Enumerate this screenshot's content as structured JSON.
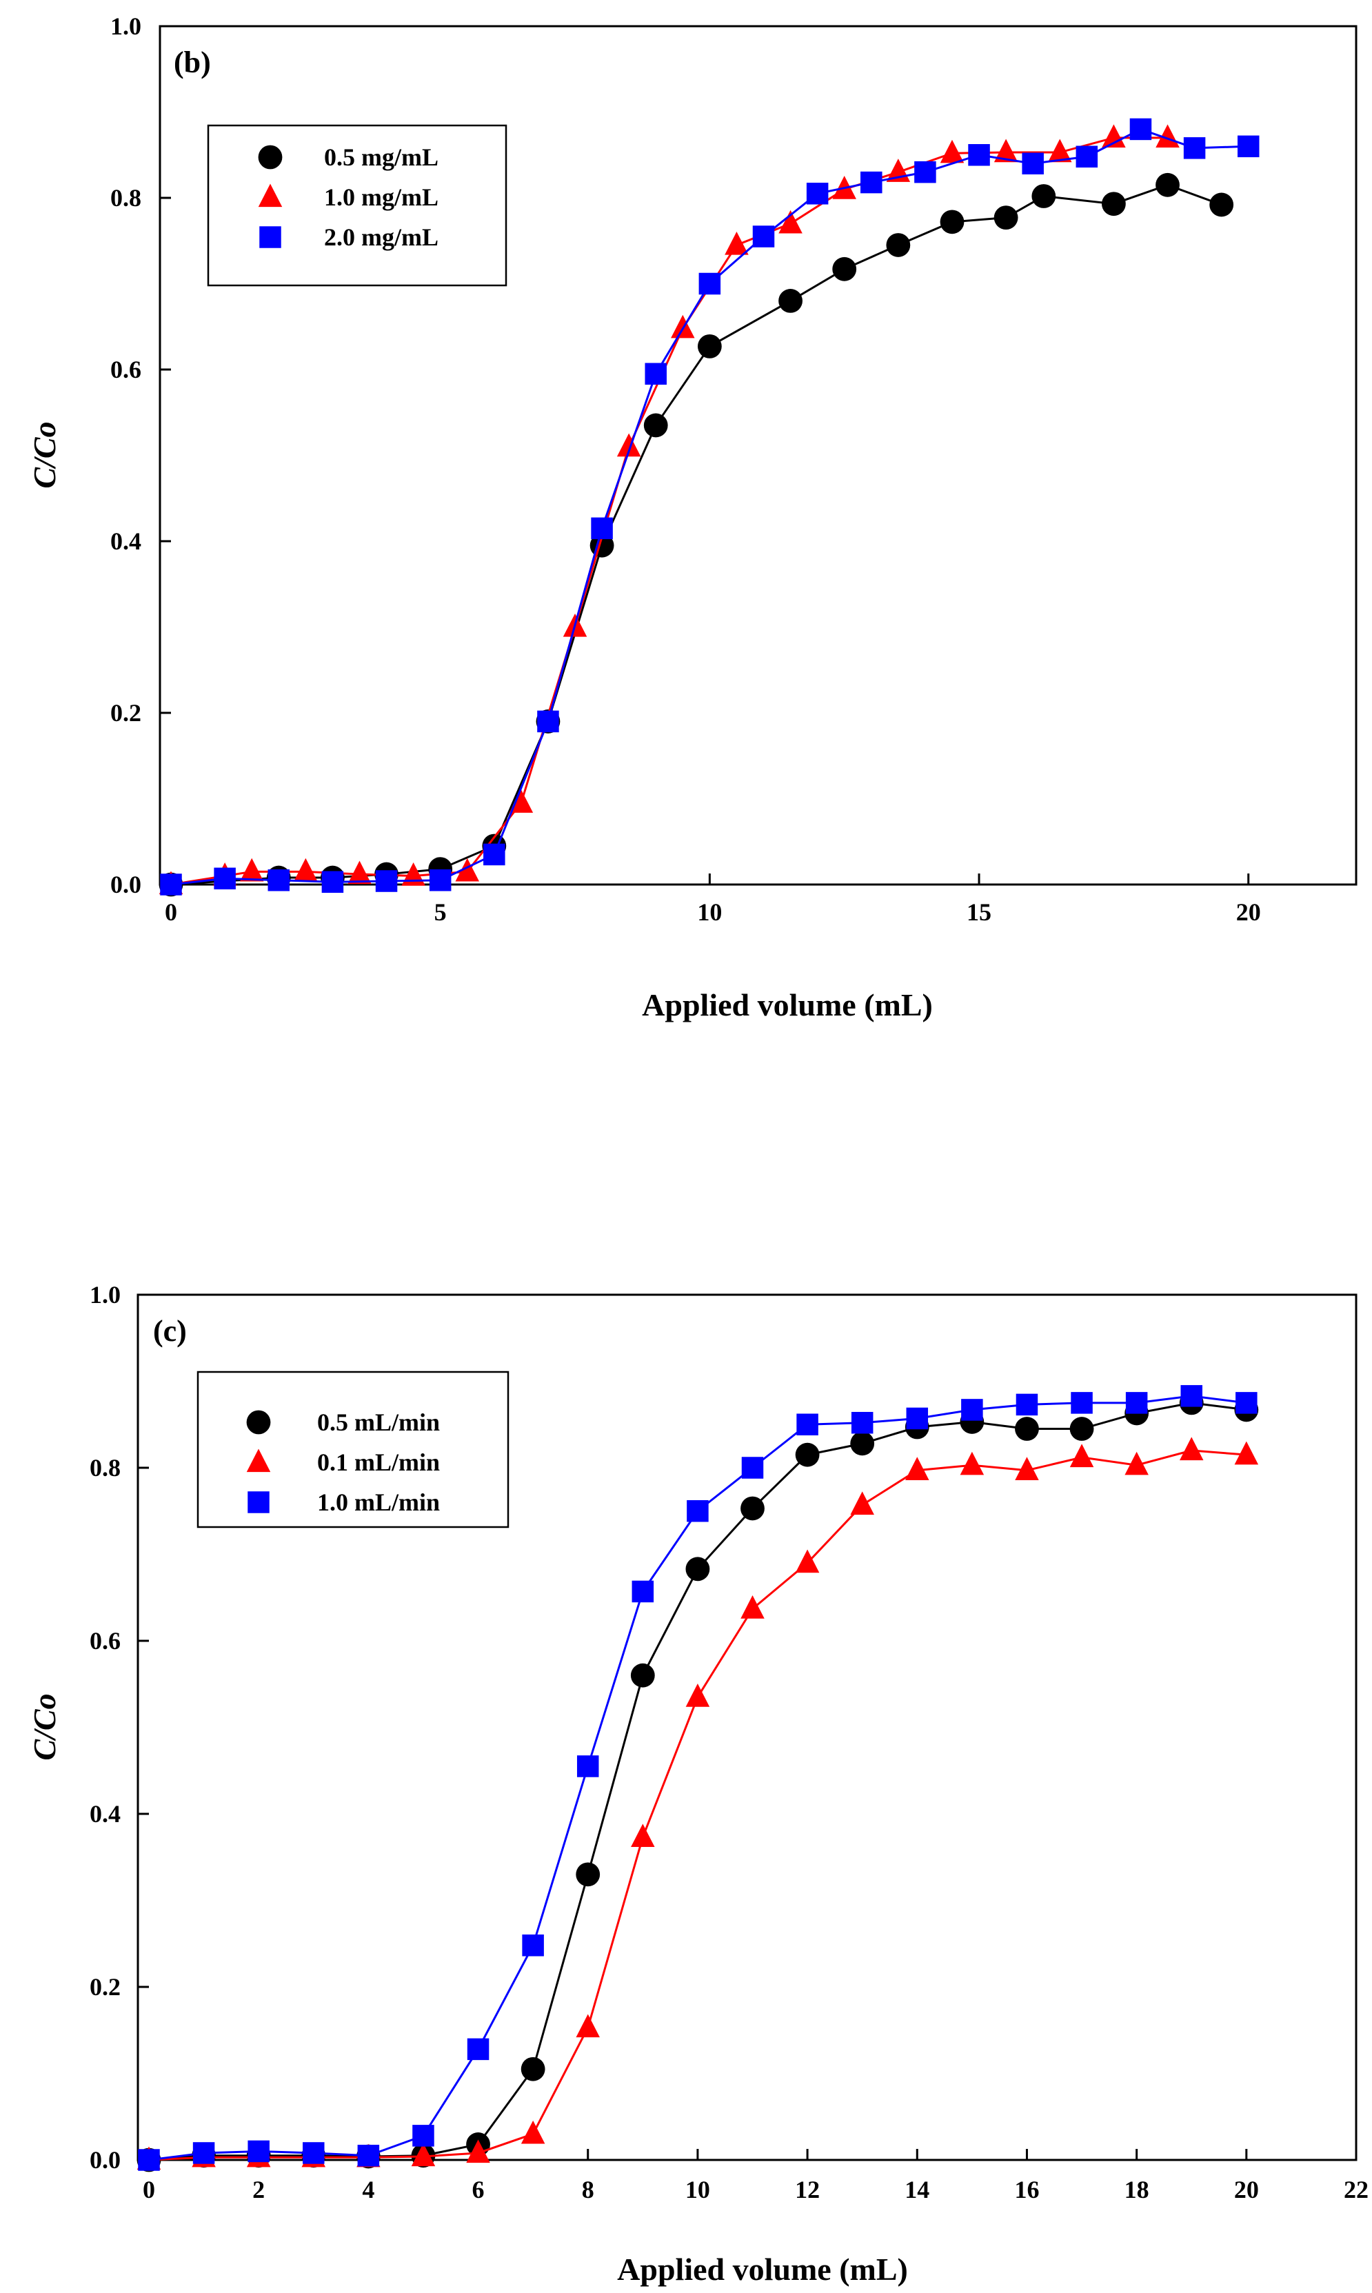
{
  "chart_data": [
    {
      "type": "line",
      "panel_label": "(b)",
      "xlabel": "Applied volume (mL)",
      "ylabel": "C/Co",
      "xlim": [
        0,
        22
      ],
      "ylim": [
        0,
        1.0
      ],
      "x_ticks": [
        0,
        5,
        10,
        15,
        20
      ],
      "x_tick_labels": [
        "0",
        "5",
        "10",
        "15",
        "20"
      ],
      "y_ticks": [
        0,
        0.2,
        0.4,
        0.6,
        0.8,
        1.0
      ],
      "y_tick_labels": [
        "0.0",
        "0.2",
        "0.4",
        "0.6",
        "0.8",
        "1.0"
      ],
      "legend_position": "top-left",
      "series": [
        {
          "name": "0.5 mg/mL",
          "color": "#000000",
          "marker": "circle",
          "x": [
            0,
            2,
            3,
            4,
            5,
            6,
            7,
            8,
            9,
            10,
            11.5,
            12.5,
            13.5,
            14.5,
            15.5,
            16.2,
            17.5,
            18.5,
            19.5
          ],
          "y": [
            0,
            0.008,
            0.008,
            0.012,
            0.018,
            0.045,
            0.19,
            0.395,
            0.535,
            0.627,
            0.68,
            0.717,
            0.745,
            0.772,
            0.777,
            0.802,
            0.793,
            0.815,
            0.792
          ]
        },
        {
          "name": "1.0 mg/mL",
          "color": "#ff0000",
          "marker": "triangle",
          "x": [
            0,
            1,
            1.5,
            2.5,
            3.5,
            4.5,
            5.5,
            6.5,
            7.5,
            8.5,
            9.5,
            10.5,
            11.5,
            12.5,
            13.5,
            14.5,
            15.5,
            16.5,
            17.5,
            18.5
          ],
          "y": [
            0,
            0.01,
            0.015,
            0.015,
            0.012,
            0.01,
            0.015,
            0.095,
            0.3,
            0.51,
            0.648,
            0.745,
            0.77,
            0.81,
            0.83,
            0.852,
            0.853,
            0.853,
            0.87,
            0.87
          ]
        },
        {
          "name": "2.0 mg/mL",
          "color": "#0000ff",
          "marker": "square",
          "x": [
            0,
            1,
            2,
            3,
            4,
            5,
            6,
            7,
            8,
            9,
            10,
            11,
            12,
            13,
            14,
            15,
            16,
            17,
            18,
            19,
            20
          ],
          "y": [
            0,
            0.007,
            0.005,
            0.003,
            0.004,
            0.005,
            0.035,
            0.19,
            0.415,
            0.595,
            0.7,
            0.755,
            0.805,
            0.818,
            0.83,
            0.85,
            0.84,
            0.848,
            0.88,
            0.858,
            0.86
          ]
        }
      ]
    },
    {
      "type": "line",
      "panel_label": "(c)",
      "xlabel": "Applied volume (mL)",
      "ylabel": "C/Co",
      "xlim": [
        0,
        22
      ],
      "ylim": [
        0,
        1.0
      ],
      "x_ticks": [
        0,
        2,
        4,
        6,
        8,
        10,
        12,
        14,
        16,
        18,
        20,
        22
      ],
      "x_tick_labels": [
        "0",
        "2",
        "4",
        "6",
        "8",
        "10",
        "12",
        "14",
        "16",
        "18",
        "20",
        "22"
      ],
      "y_ticks": [
        0,
        0.2,
        0.4,
        0.6,
        0.8,
        1.0
      ],
      "y_tick_labels": [
        "0.0",
        "0.2",
        "0.4",
        "0.6",
        "0.8",
        "1.0"
      ],
      "legend_position": "top-left",
      "series": [
        {
          "name": "0.5 mL/min",
          "color": "#000000",
          "marker": "circle",
          "x": [
            0,
            1,
            2,
            3,
            4,
            5,
            6,
            7,
            8,
            9,
            10,
            11,
            12,
            13,
            14,
            15,
            16,
            17,
            18,
            19,
            20
          ],
          "y": [
            0,
            0.005,
            0.005,
            0.005,
            0.004,
            0.005,
            0.018,
            0.105,
            0.33,
            0.56,
            0.683,
            0.753,
            0.815,
            0.828,
            0.847,
            0.853,
            0.845,
            0.845,
            0.863,
            0.875,
            0.867
          ]
        },
        {
          "name": "0.1 mL/min",
          "color": "#ff0000",
          "marker": "triangle",
          "x": [
            0,
            1,
            2,
            3,
            4,
            5,
            6,
            7,
            8,
            9,
            10,
            11,
            12,
            13,
            14,
            15,
            16,
            17,
            18,
            19,
            20
          ],
          "y": [
            0,
            0.003,
            0.003,
            0.003,
            0.003,
            0.004,
            0.008,
            0.03,
            0.153,
            0.373,
            0.535,
            0.637,
            0.69,
            0.757,
            0.797,
            0.803,
            0.797,
            0.812,
            0.803,
            0.82,
            0.815
          ]
        },
        {
          "name": "1.0 mL/min",
          "color": "#0000ff",
          "marker": "square",
          "x": [
            0,
            1,
            2,
            3,
            4,
            5,
            6,
            7,
            8,
            9,
            10,
            11,
            12,
            13,
            14,
            15,
            16,
            17,
            18,
            19,
            20
          ],
          "y": [
            0,
            0.008,
            0.01,
            0.008,
            0.005,
            0.028,
            0.128,
            0.248,
            0.455,
            0.657,
            0.75,
            0.8,
            0.85,
            0.852,
            0.857,
            0.867,
            0.873,
            0.875,
            0.875,
            0.883,
            0.875
          ]
        }
      ]
    }
  ]
}
